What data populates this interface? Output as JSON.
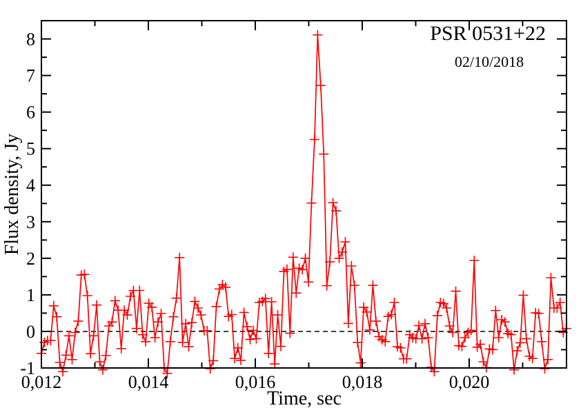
{
  "figure": {
    "background": "#ffffff"
  },
  "colors": {
    "series": "#ff0000",
    "axis": "#000000",
    "title": "#ff0000",
    "annotation": "#000000",
    "zero_line": "#000000",
    "background": "#ffffff"
  },
  "chart_data": {
    "type": "line",
    "title": "PSR 0531+22",
    "annotation": "02/10/2018",
    "xlabel": "Time, sec",
    "ylabel": "Flux density, Jy",
    "xlim": [
      0.012,
      0.02182
    ],
    "ylim": [
      -1,
      8.5
    ],
    "x_major_ticks": [
      0.012,
      0.014,
      0.016,
      0.018,
      0.02
    ],
    "x_tick_labels": [
      "0,012",
      "0,014",
      "0,016",
      "0,018",
      "0,020"
    ],
    "x_minor_ticks": [
      0.013,
      0.015,
      0.017,
      0.019,
      0.021
    ],
    "y_major_ticks": [
      -1,
      0,
      1,
      2,
      3,
      4,
      5,
      6,
      7,
      8
    ],
    "y_minor_ticks": [
      -0.5,
      0.5,
      1.5,
      2.5,
      3.5,
      4.5,
      5.5,
      6.5,
      7.5
    ],
    "grid": false,
    "legend_position": "none",
    "zero_line": {
      "y": 0,
      "style": "dashed"
    },
    "marker": "plus",
    "peak": {
      "t": 0.01718,
      "flux": 8.11
    },
    "series": [
      {
        "name": "flux-density",
        "color": "#ff0000",
        "t0": 0.012,
        "dt": 5.74e-05,
        "values": [
          -0.6,
          -0.3,
          -0.25,
          -0.25,
          0.7,
          0.4,
          -0.85,
          -1.1,
          -0.65,
          -0.12,
          -0.77,
          -0.03,
          0.28,
          1.54,
          1.56,
          0.98,
          -0.61,
          -0.12,
          0.72,
          -0.83,
          -1.05,
          -0.66,
          0.15,
          0.26,
          0.84,
          0.58,
          -0.47,
          0.58,
          0.45,
          0.96,
          1.12,
          0.08,
          1.12,
          -0.09,
          -0.28,
          0.77,
          0.66,
          -0.17,
          0.26,
          0.49,
          -0.99,
          -1.15,
          -0.28,
          0.4,
          0.91,
          2.02,
          -0.3,
          0.21,
          -0.42,
          0.24,
          0.82,
          0.64,
          0.45,
          0.02,
          0.02,
          -1.02,
          -0.8,
          0.68,
          1.16,
          1.28,
          1.21,
          0.41,
          0.46,
          -0.74,
          -0.45,
          -0.79,
          0.52,
          0.13,
          -0.22,
          0.03,
          -0.2,
          0.79,
          0.82,
          0.9,
          -0.6,
          0.81,
          -0.89,
          0.45,
          -0.41,
          1.64,
          1.7,
          -0.05,
          2.03,
          1.05,
          1.73,
          1.69,
          2.0,
          1.35,
          3.51,
          5.25,
          8.11,
          6.73,
          4.85,
          1.25,
          1.9,
          3.52,
          3.3,
          2.0,
          2.17,
          2.45,
          0.22,
          1.79,
          1.26,
          -0.3,
          -0.86,
          0.66,
          0.53,
          0.04,
          1.26,
          0.28,
          -0.14,
          -0.23,
          -0.28,
          0.41,
          0.46,
          0.79,
          -0.42,
          -0.45,
          -0.75,
          -0.75,
          -0.09,
          -0.17,
          -0.2,
          0.16,
          -0.2,
          0.21,
          -0.17,
          -0.98,
          -1.1,
          0.43,
          0.79,
          0.76,
          0.64,
          0.15,
          -0.03,
          1.1,
          -0.39,
          -0.41,
          -0.17,
          -0.03,
          0.03,
          1.94,
          -0.43,
          -0.35,
          -0.83,
          -0.99,
          -0.48,
          -0.5,
          0.57,
          -0.17,
          0.32,
          0.26,
          -0.06,
          -0.09,
          -1.05,
          -0.53,
          -0.31,
          0.99,
          -0.2,
          -0.68,
          -0.74,
          0.51,
          0.49,
          -0.28,
          -1.02,
          -0.77,
          1.47,
          0.64,
          0.64,
          0.79,
          -0.03,
          0.08
        ]
      }
    ]
  }
}
